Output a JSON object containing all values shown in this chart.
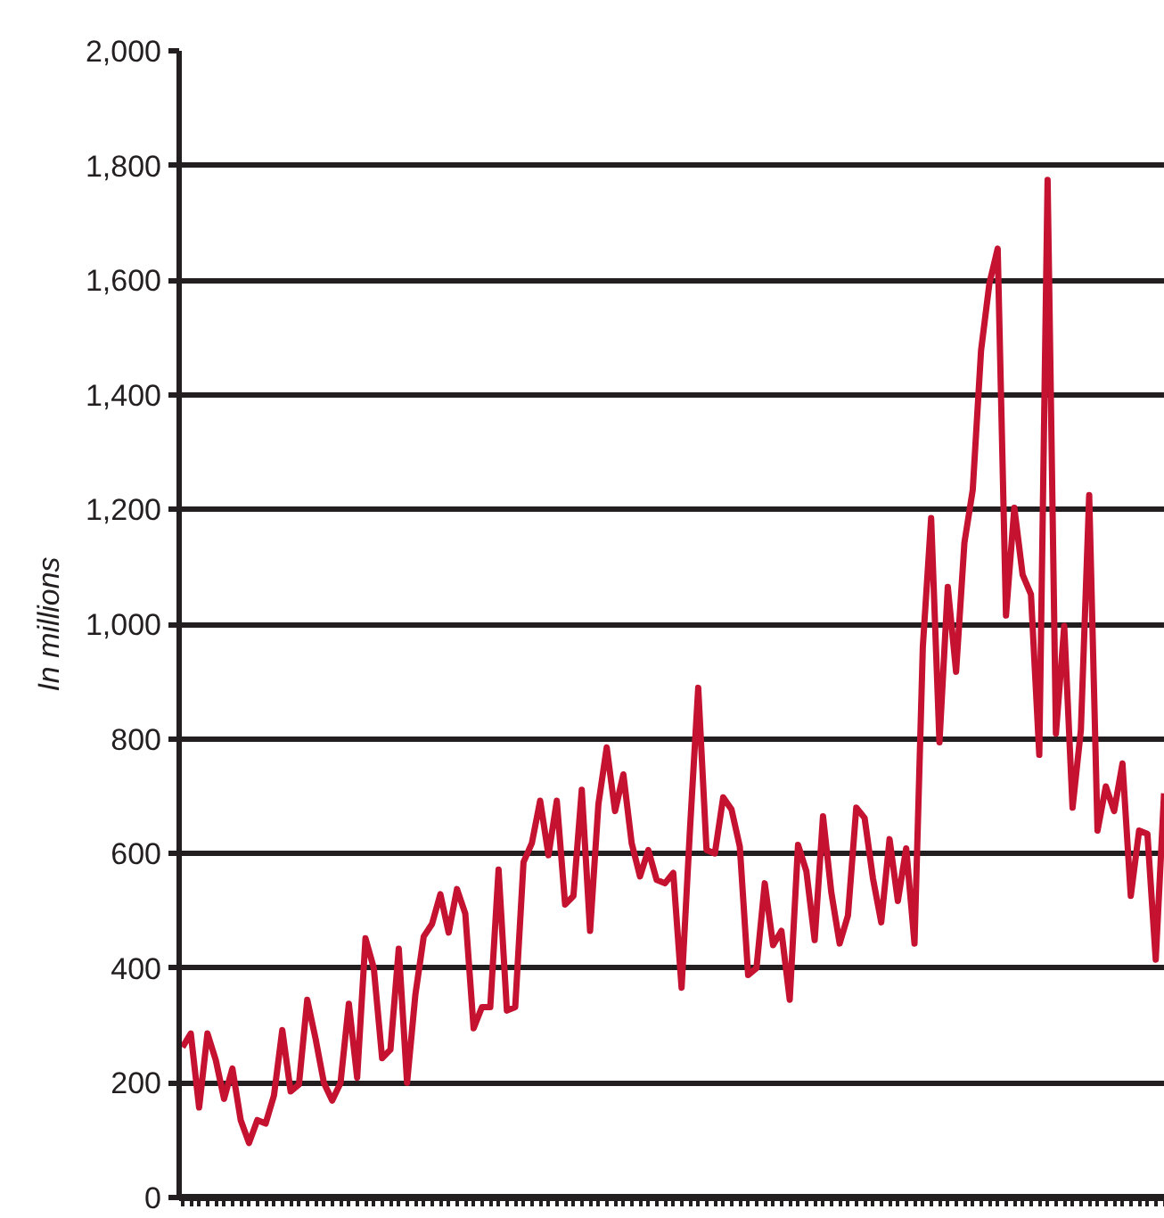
{
  "chart_data": {
    "type": "line",
    "ylabel": "In millions",
    "color": "#c41230",
    "categories": [
      null,
      null,
      null,
      null,
      null,
      null,
      null,
      null,
      null,
      null,
      null,
      null,
      null,
      null,
      null,
      null,
      null,
      null,
      null,
      null,
      null,
      null,
      null,
      null,
      null,
      null,
      null,
      null,
      null,
      null,
      null,
      null,
      null,
      null,
      null,
      null,
      null,
      null,
      null,
      null,
      null,
      null,
      null,
      null,
      null,
      null,
      null,
      null,
      null,
      null,
      null,
      null,
      null,
      null,
      null,
      null,
      null,
      null,
      null,
      null,
      null,
      null,
      null,
      null,
      null,
      null,
      null,
      null,
      null,
      null,
      null,
      null,
      null,
      null,
      null,
      null,
      null,
      null,
      null,
      null,
      null,
      null,
      null,
      null,
      null,
      null,
      null,
      null,
      null,
      null,
      null,
      null,
      null,
      null,
      null,
      null,
      null,
      null,
      null,
      null,
      null,
      null,
      null,
      null,
      null,
      null,
      null,
      null,
      null,
      null,
      null,
      null,
      null,
      null,
      null,
      null,
      null,
      null,
      null
    ],
    "values": [
      262,
      286,
      157,
      286,
      240,
      172,
      225,
      135,
      95,
      135,
      129,
      178,
      292,
      185,
      197,
      345,
      277,
      200,
      169,
      200,
      338,
      209,
      452,
      400,
      243,
      258,
      434,
      200,
      354,
      455,
      477,
      529,
      462,
      538,
      495,
      295,
      332,
      332,
      572,
      326,
      332,
      585,
      618,
      692,
      597,
      692,
      511,
      526,
      711,
      465,
      686,
      785,
      674,
      738,
      618,
      560,
      606,
      554,
      548,
      566,
      366,
      640,
      889,
      606,
      600,
      698,
      677,
      612,
      388,
      400,
      548,
      440,
      465,
      345,
      615,
      569,
      449,
      665,
      532,
      443,
      492,
      680,
      662,
      557,
      480,
      625,
      517,
      609,
      443,
      960,
      1185,
      794,
      1065,
      917,
      1142,
      1234,
      1477,
      1594,
      1655,
      1015,
      1203,
      1086,
      1052,
      772,
      1775,
      809,
      997,
      680,
      815,
      1225,
      640,
      717,
      674,
      757,
      526,
      640,
      634,
      415,
      705
    ],
    "ylim": [
      0,
      2000
    ],
    "yticks": [
      0,
      200,
      400,
      600,
      800,
      {
        "value": 1000,
        "label": "1,000"
      },
      {
        "value": 1200,
        "label": "1,200"
      },
      {
        "value": 1400,
        "label": "1,400"
      },
      {
        "value": 1600,
        "label": "1,600"
      },
      {
        "value": 1800,
        "label": "1,800"
      },
      {
        "value": 2000,
        "label": "2,000"
      }
    ],
    "grid": "y",
    "tick_labels": "y",
    "marker": "none",
    "line_style": "solid"
  }
}
